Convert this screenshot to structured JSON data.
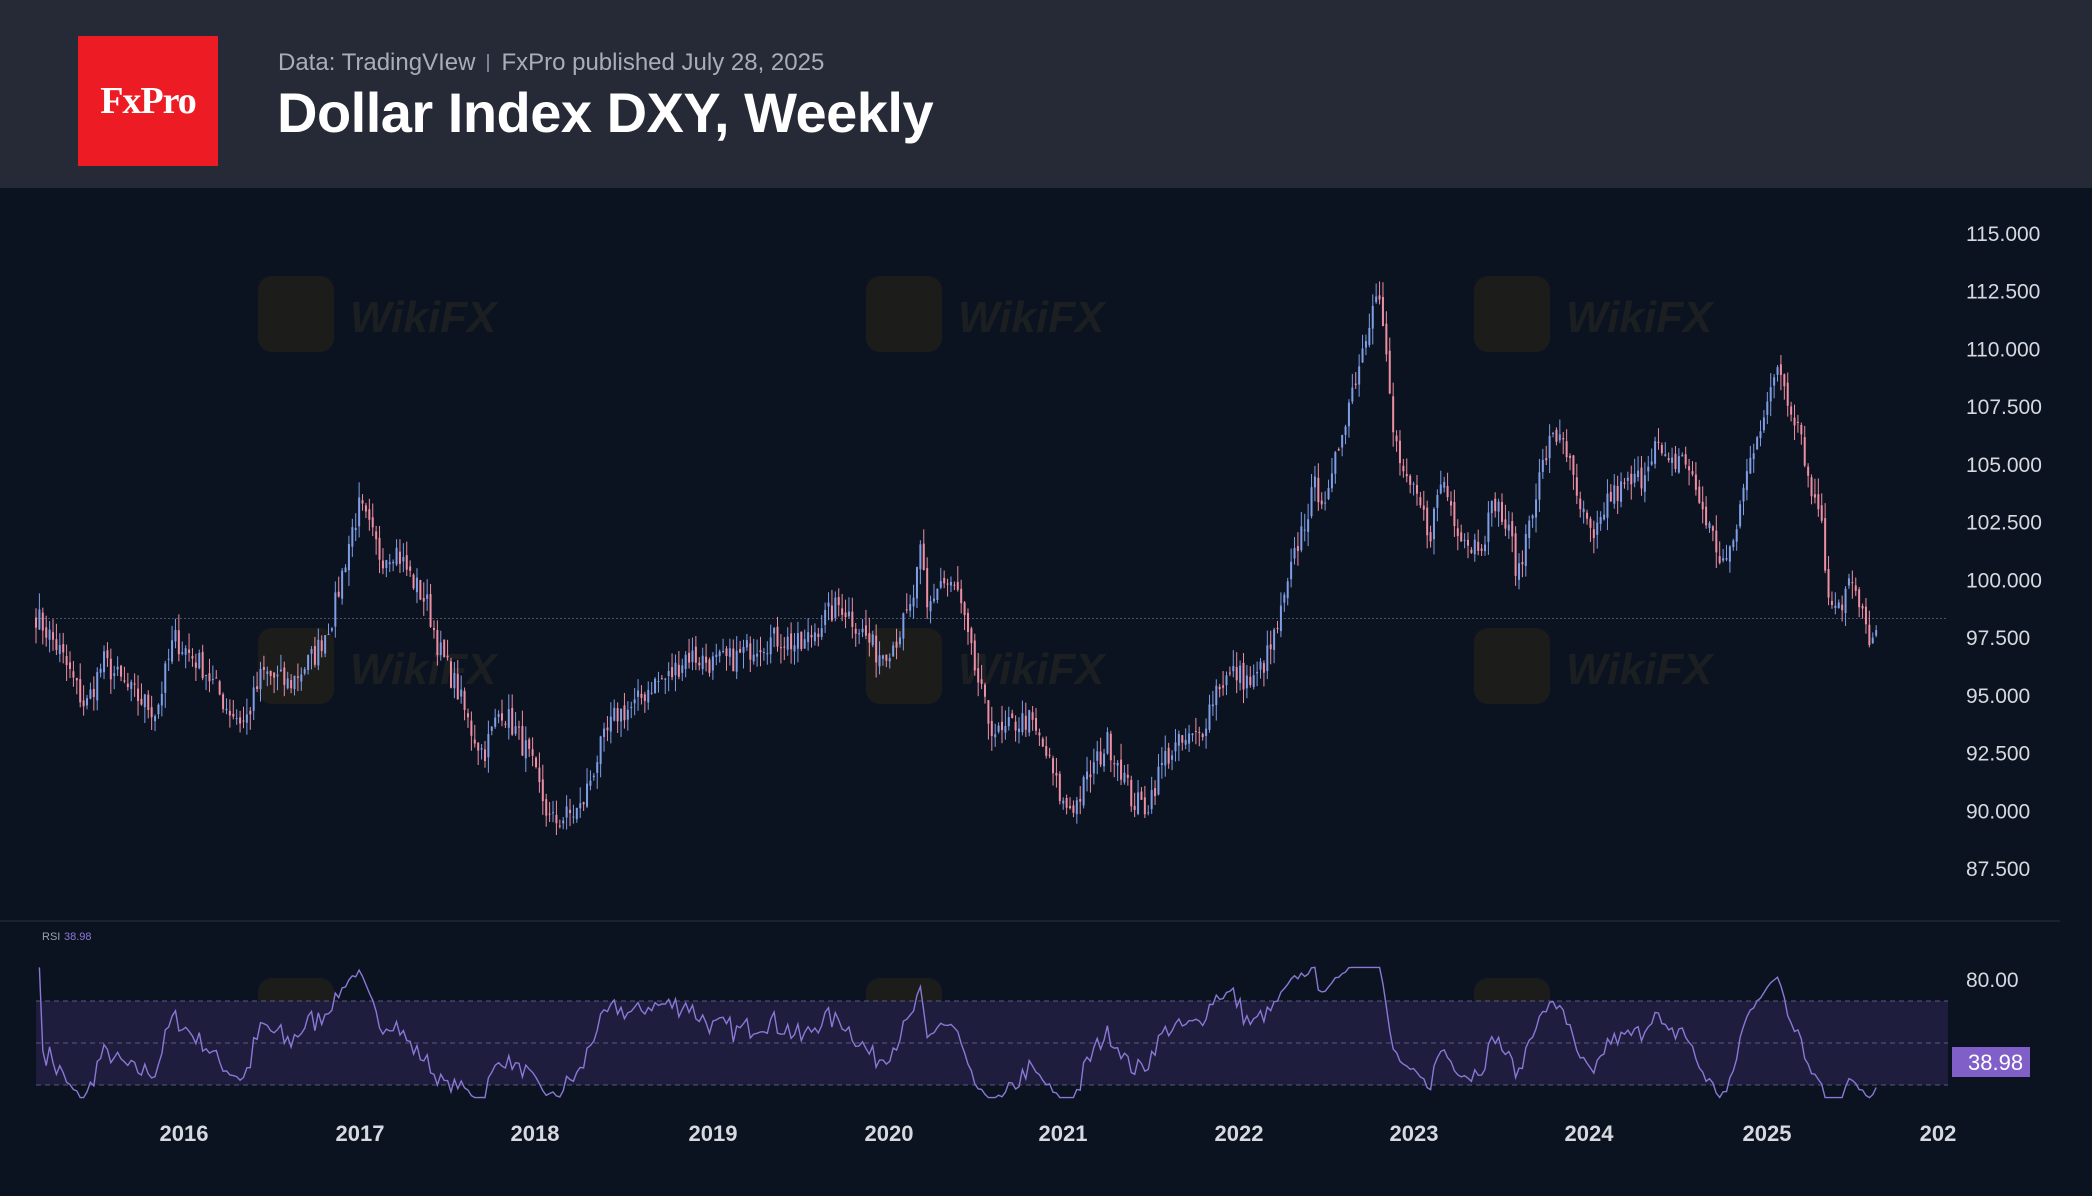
{
  "header": {
    "logo_text": "FxPro",
    "data_source": "Data: TradingVIew",
    "published": "FxPro published July 28, 2025",
    "title": "Dollar Index DXY, Weekly"
  },
  "watermark": {
    "text": "WikiFX"
  },
  "colors": {
    "background": "#0c1320",
    "header_bg": "#262a36",
    "logo_bg": "#ed1c24",
    "bull_candle": "#7f9ee6",
    "bear_candle": "#ee8fa3",
    "rsi_line": "#8a78d6",
    "rsi_band": "#1e1d3d",
    "rsi_badge": "#8060c8"
  },
  "chart_data": [
    {
      "type": "candlestick",
      "name": "Dollar Index DXY, Weekly",
      "y_ticks": [
        "115.000",
        "112.500",
        "110.000",
        "107.500",
        "105.000",
        "102.500",
        "100.000",
        "97.500",
        "95.000",
        "92.500",
        "90.000",
        "87.500"
      ],
      "y_range": [
        87.5,
        115.0
      ],
      "x_ticks": [
        "2016",
        "2017",
        "2018",
        "2019",
        "2020",
        "2021",
        "2022",
        "2023",
        "2024",
        "2025",
        "202"
      ],
      "x_range": [
        2015.17,
        2025.98
      ],
      "last_price": 98.35,
      "close_keypoints": [
        [
          2015.17,
          98.5
        ],
        [
          2015.3,
          97.0
        ],
        [
          2015.45,
          94.5
        ],
        [
          2015.55,
          96.5
        ],
        [
          2015.7,
          95.2
        ],
        [
          2015.85,
          94.3
        ],
        [
          2015.95,
          97.5
        ],
        [
          2016.12,
          96.2
        ],
        [
          2016.25,
          94.5
        ],
        [
          2016.35,
          93.8
        ],
        [
          2016.45,
          96.0
        ],
        [
          2016.6,
          95.5
        ],
        [
          2016.75,
          96.8
        ],
        [
          2016.85,
          98.5
        ],
        [
          2016.95,
          102.0
        ],
        [
          2017.0,
          103.2
        ],
        [
          2017.12,
          101.0
        ],
        [
          2017.2,
          101.4
        ],
        [
          2017.3,
          100.0
        ],
        [
          2017.38,
          99.0
        ],
        [
          2017.45,
          97.0
        ],
        [
          2017.55,
          95.3
        ],
        [
          2017.62,
          93.7
        ],
        [
          2017.7,
          92.5
        ],
        [
          2017.8,
          94.5
        ],
        [
          2017.88,
          93.5
        ],
        [
          2017.95,
          92.5
        ],
        [
          2018.08,
          89.5
        ],
        [
          2018.15,
          89.7
        ],
        [
          2018.25,
          90.1
        ],
        [
          2018.35,
          92.5
        ],
        [
          2018.45,
          94.2
        ],
        [
          2018.55,
          94.5
        ],
        [
          2018.65,
          95.5
        ],
        [
          2018.75,
          95.8
        ],
        [
          2018.85,
          96.8
        ],
        [
          2019.0,
          96.4
        ],
        [
          2019.12,
          96.6
        ],
        [
          2019.25,
          97.3
        ],
        [
          2019.38,
          97.5
        ],
        [
          2019.5,
          97.1
        ],
        [
          2019.62,
          98.3
        ],
        [
          2019.72,
          99.0
        ],
        [
          2019.82,
          98.0
        ],
        [
          2019.93,
          96.8
        ],
        [
          2020.02,
          97.3
        ],
        [
          2020.12,
          98.8
        ],
        [
          2020.18,
          101.5
        ],
        [
          2020.2,
          98.5
        ],
        [
          2020.28,
          100.0
        ],
        [
          2020.38,
          99.5
        ],
        [
          2020.45,
          97.0
        ],
        [
          2020.55,
          94.0
        ],
        [
          2020.62,
          93.2
        ],
        [
          2020.7,
          93.8
        ],
        [
          2020.78,
          94.0
        ],
        [
          2020.88,
          92.5
        ],
        [
          2020.98,
          90.2
        ],
        [
          2021.05,
          90.3
        ],
        [
          2021.12,
          91.5
        ],
        [
          2021.23,
          93.0
        ],
        [
          2021.3,
          92.0
        ],
        [
          2021.37,
          90.4
        ],
        [
          2021.45,
          90.2
        ],
        [
          2021.55,
          92.3
        ],
        [
          2021.62,
          92.8
        ],
        [
          2021.75,
          93.3
        ],
        [
          2021.85,
          95.5
        ],
        [
          2021.95,
          96.0
        ],
        [
          2022.05,
          95.5
        ],
        [
          2022.15,
          97.0
        ],
        [
          2022.22,
          98.8
        ],
        [
          2022.3,
          101.5
        ],
        [
          2022.4,
          104.0
        ],
        [
          2022.48,
          103.5
        ],
        [
          2022.55,
          106.5
        ],
        [
          2022.62,
          108.5
        ],
        [
          2022.7,
          111.0
        ],
        [
          2022.74,
          113.0
        ],
        [
          2022.78,
          111.5
        ],
        [
          2022.84,
          106.5
        ],
        [
          2022.92,
          104.0
        ],
        [
          2022.98,
          103.5
        ],
        [
          2023.05,
          102.0
        ],
        [
          2023.12,
          104.5
        ],
        [
          2023.2,
          102.5
        ],
        [
          2023.28,
          101.5
        ],
        [
          2023.35,
          101.8
        ],
        [
          2023.42,
          103.5
        ],
        [
          2023.52,
          101.5
        ],
        [
          2023.55,
          100.0
        ],
        [
          2023.62,
          103.0
        ],
        [
          2023.72,
          105.8
        ],
        [
          2023.8,
          106.5
        ],
        [
          2023.88,
          103.5
        ],
        [
          2023.98,
          101.5
        ],
        [
          2024.05,
          103.5
        ],
        [
          2024.15,
          104.0
        ],
        [
          2024.25,
          104.5
        ],
        [
          2024.32,
          106.0
        ],
        [
          2024.4,
          104.8
        ],
        [
          2024.48,
          105.5
        ],
        [
          2024.55,
          104.0
        ],
        [
          2024.62,
          102.5
        ],
        [
          2024.7,
          100.8
        ],
        [
          2024.75,
          101.0
        ],
        [
          2024.82,
          103.8
        ],
        [
          2024.9,
          106.5
        ],
        [
          2024.98,
          108.0
        ],
        [
          2025.02,
          109.5
        ],
        [
          2025.08,
          107.8
        ],
        [
          2025.15,
          106.5
        ],
        [
          2025.2,
          103.8
        ],
        [
          2025.25,
          103.5
        ],
        [
          2025.3,
          99.5
        ],
        [
          2025.38,
          99.0
        ],
        [
          2025.42,
          100.0
        ],
        [
          2025.48,
          98.8
        ],
        [
          2025.52,
          97.8
        ],
        [
          2025.57,
          97.2
        ],
        [
          2025.58,
          98.2
        ]
      ]
    },
    {
      "type": "line",
      "name": "RSI",
      "label": "RSI",
      "value_label": "38.98",
      "y_ticks": [
        "80.00"
      ],
      "band": [
        30,
        70
      ],
      "mid": 50,
      "x_range": [
        2015.17,
        2025.98
      ]
    }
  ]
}
